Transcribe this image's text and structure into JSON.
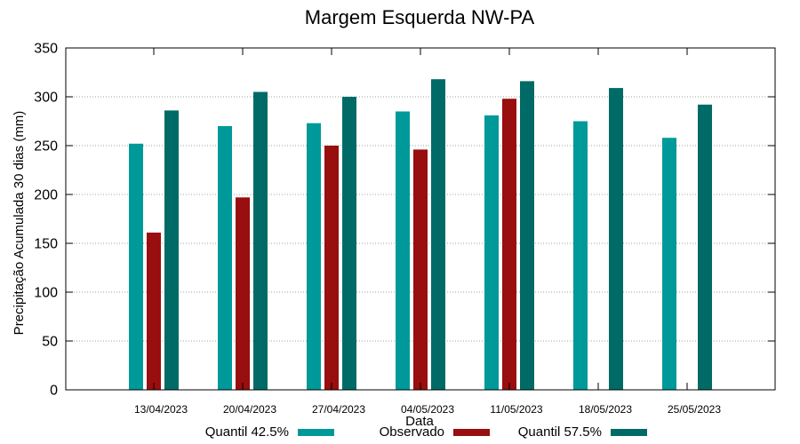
{
  "chart_data": {
    "type": "bar",
    "title": "Margem Esquerda NW-PA",
    "xlabel": "Data",
    "ylabel": "Precipitação Acumulada 30 dias (mm)",
    "ylim": [
      0,
      350
    ],
    "yticks": [
      0,
      50,
      100,
      150,
      200,
      250,
      300,
      350
    ],
    "grid": true,
    "legend_position": "bottom",
    "categories": [
      "13/04/2023",
      "20/04/2023",
      "27/04/2023",
      "04/05/2023",
      "11/05/2023",
      "18/05/2023",
      "25/05/2023"
    ],
    "series": [
      {
        "name": "Quantil 42.5%",
        "color": "#009999",
        "values": [
          252,
          270,
          273,
          285,
          281,
          275,
          258
        ]
      },
      {
        "name": "Observado",
        "color": "#990e0e",
        "values": [
          161,
          197,
          250,
          246,
          298,
          null,
          null
        ]
      },
      {
        "name": "Quantil 57.5%",
        "color": "#006b66",
        "values": [
          286,
          305,
          300,
          318,
          316,
          309,
          292
        ]
      }
    ]
  }
}
